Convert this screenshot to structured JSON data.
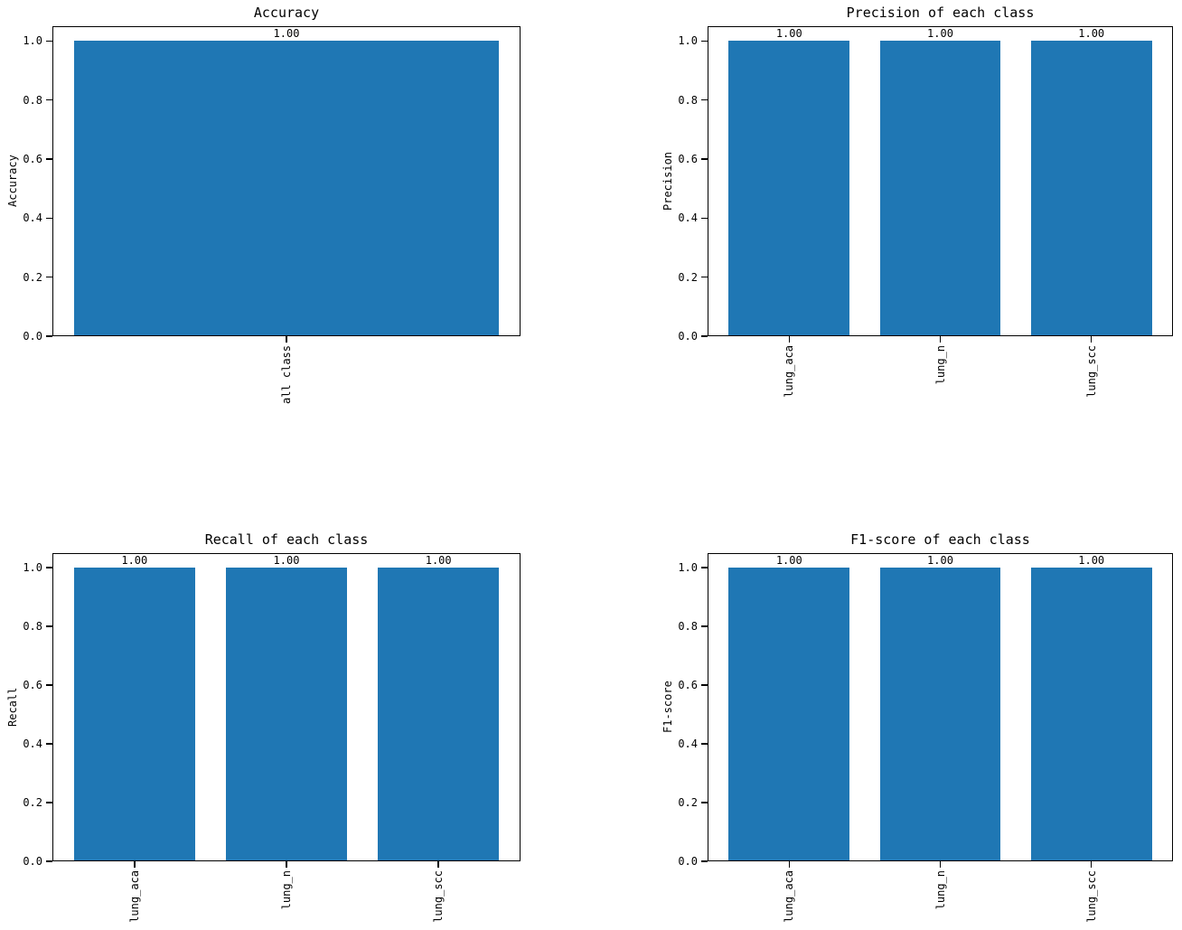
{
  "figure": {
    "background": "#ffffff",
    "bar_color": "#1f77b4",
    "axis_color": "#000000",
    "text_color": "#000000"
  },
  "chart_data": [
    {
      "id": "accuracy",
      "type": "bar",
      "title": "Accuracy",
      "xlabel": "",
      "ylabel": "Accuracy",
      "categories": [
        "all class"
      ],
      "values": [
        1.0
      ],
      "bar_labels": [
        "1.00"
      ],
      "ylim": [
        0,
        1.05
      ],
      "yticks": [
        0.0,
        0.2,
        0.4,
        0.6,
        0.8,
        1.0
      ],
      "ytick_labels": [
        "0.0",
        "0.2",
        "0.4",
        "0.6",
        "0.8",
        "1.0"
      ],
      "grid": false,
      "legend": false
    },
    {
      "id": "precision",
      "type": "bar",
      "title": "Precision of each class",
      "xlabel": "",
      "ylabel": "Precision",
      "categories": [
        "lung_aca",
        "lung_n",
        "lung_scc"
      ],
      "values": [
        1.0,
        1.0,
        1.0
      ],
      "bar_labels": [
        "1.00",
        "1.00",
        "1.00"
      ],
      "ylim": [
        0,
        1.05
      ],
      "yticks": [
        0.0,
        0.2,
        0.4,
        0.6,
        0.8,
        1.0
      ],
      "ytick_labels": [
        "0.0",
        "0.2",
        "0.4",
        "0.6",
        "0.8",
        "1.0"
      ],
      "grid": false,
      "legend": false
    },
    {
      "id": "recall",
      "type": "bar",
      "title": "Recall of each class",
      "xlabel": "",
      "ylabel": "Recall",
      "categories": [
        "lung_aca",
        "lung_n",
        "lung_scc"
      ],
      "values": [
        1.0,
        1.0,
        1.0
      ],
      "bar_labels": [
        "1.00",
        "1.00",
        "1.00"
      ],
      "ylim": [
        0,
        1.05
      ],
      "yticks": [
        0.0,
        0.2,
        0.4,
        0.6,
        0.8,
        1.0
      ],
      "ytick_labels": [
        "0.0",
        "0.2",
        "0.4",
        "0.6",
        "0.8",
        "1.0"
      ],
      "grid": false,
      "legend": false
    },
    {
      "id": "f1_score",
      "type": "bar",
      "title": "F1-score of each class",
      "xlabel": "",
      "ylabel": "F1-score",
      "categories": [
        "lung_aca",
        "lung_n",
        "lung_scc"
      ],
      "values": [
        1.0,
        1.0,
        1.0
      ],
      "bar_labels": [
        "1.00",
        "1.00",
        "1.00"
      ],
      "ylim": [
        0,
        1.05
      ],
      "yticks": [
        0.0,
        0.2,
        0.4,
        0.6,
        0.8,
        1.0
      ],
      "ytick_labels": [
        "0.0",
        "0.2",
        "0.4",
        "0.6",
        "0.8",
        "1.0"
      ],
      "grid": false,
      "legend": false
    }
  ]
}
